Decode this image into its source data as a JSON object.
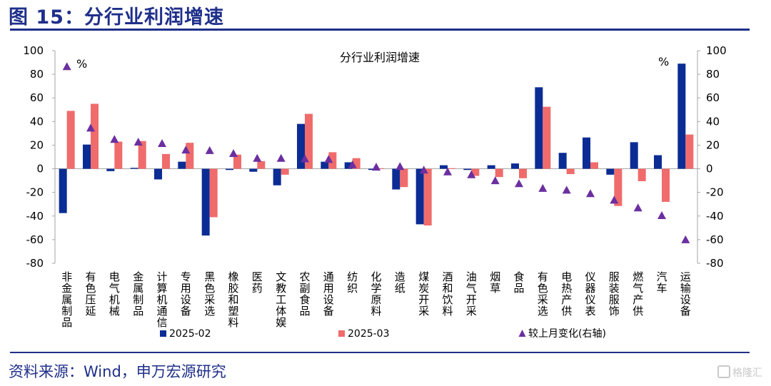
{
  "header": {
    "title": "图 15：分行业利润增速"
  },
  "footer": {
    "source": "资料来源：Wind，申万宏源研究"
  },
  "watermark": {
    "text": "格隆汇"
  },
  "chart_data": {
    "type": "bar",
    "title": "分行业利润增速",
    "left_unit": "%",
    "right_unit": "%",
    "ylim": [
      -80,
      100
    ],
    "y2lim": [
      -80,
      100
    ],
    "yticks": [
      100,
      80,
      60,
      40,
      20,
      0,
      -20,
      -40,
      -60,
      -80
    ],
    "grid": false,
    "legend_position": "bottom",
    "categories": [
      "非金属制品",
      "有色压延",
      "电气机械",
      "金属制品",
      "计算机通信",
      "专用设备",
      "黑色采选",
      "橡胶和塑料",
      "医药",
      "文教工体娱",
      "农副食品",
      "通用设备",
      "纺织",
      "化学原料",
      "造纸",
      "煤炭开采",
      "酒和饮料",
      "油气开采",
      "烟草",
      "食品",
      "有色采选",
      "电热产供",
      "仪器仪表",
      "服装服饰",
      "燃气产供",
      "汽车",
      "运输设备"
    ],
    "series": [
      {
        "name": "2025-02",
        "kind": "bar",
        "axis": "left",
        "color": "#0b2c94",
        "values": [
          -37.5,
          20.5,
          -2,
          0.8,
          -9,
          6,
          -56.5,
          -1,
          -2.5,
          -14,
          38,
          6,
          5.5,
          -1,
          -17.5,
          -47,
          3,
          -1,
          3,
          4.5,
          69,
          13.5,
          26.5,
          -5,
          22.5,
          11.5,
          89
        ]
      },
      {
        "name": "2025-03",
        "kind": "bar",
        "axis": "left",
        "color": "#f06b6b",
        "values": [
          49,
          55,
          23,
          23.5,
          12.5,
          22,
          -41,
          12,
          6.5,
          -5,
          46.5,
          14,
          9,
          0.5,
          -15.5,
          -48,
          0.5,
          -6,
          -7,
          -8,
          52.5,
          -4.5,
          5.5,
          -31.5,
          -10.5,
          -28,
          29
        ]
      },
      {
        "name": "较上月变化(右轴)",
        "kind": "marker",
        "axis": "right",
        "color": "#6b2fa0",
        "values": [
          86.5,
          34.5,
          25,
          22.7,
          21.5,
          16,
          15.5,
          13,
          9,
          9,
          8.5,
          8,
          3.5,
          1.5,
          2,
          -1,
          -2.5,
          -5,
          -10,
          -12.5,
          -16.5,
          -18,
          -21,
          -26.5,
          -33,
          -39.5,
          -60
        ]
      }
    ]
  }
}
